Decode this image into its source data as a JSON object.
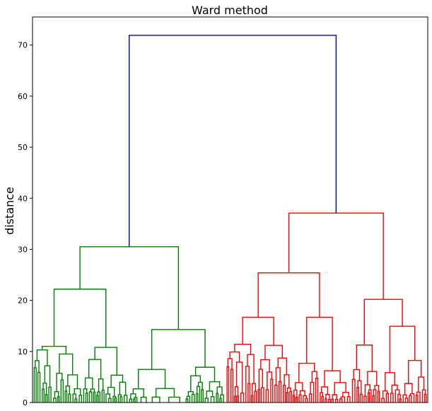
{
  "chart_data": {
    "type": "dendrogram",
    "title": "Ward method",
    "ylabel": "distance",
    "xlabel": "",
    "ylim": [
      0,
      75.5
    ],
    "yticks": [
      0,
      10,
      20,
      30,
      40,
      50,
      60,
      70
    ],
    "grid": false,
    "colors": {
      "root": "#0000bf",
      "cluster_1": "#008000",
      "cluster_2": "#ff0000",
      "axis": "#000000"
    },
    "clusters": [
      {
        "color_key": "cluster_1",
        "merge_height": 30.5,
        "sub_merges": [
          22.2,
          14.3,
          11.0,
          10.8,
          10.3,
          9.5,
          8.2,
          7.2,
          6.8,
          5.9,
          5.6,
          5.2,
          4.8,
          4.6,
          3.8,
          3.0,
          2.6
        ]
      },
      {
        "color_key": "cluster_2",
        "merge_height": 37.1,
        "sub_merges": [
          25.4,
          20.2,
          16.7,
          16.7,
          11.4,
          11.2,
          9.9,
          9.4,
          8.6,
          7.9,
          7.0,
          6.5,
          6.3,
          5.3,
          4.1,
          3.7,
          3.1
        ]
      }
    ],
    "root_merge_height": 71.9
  }
}
